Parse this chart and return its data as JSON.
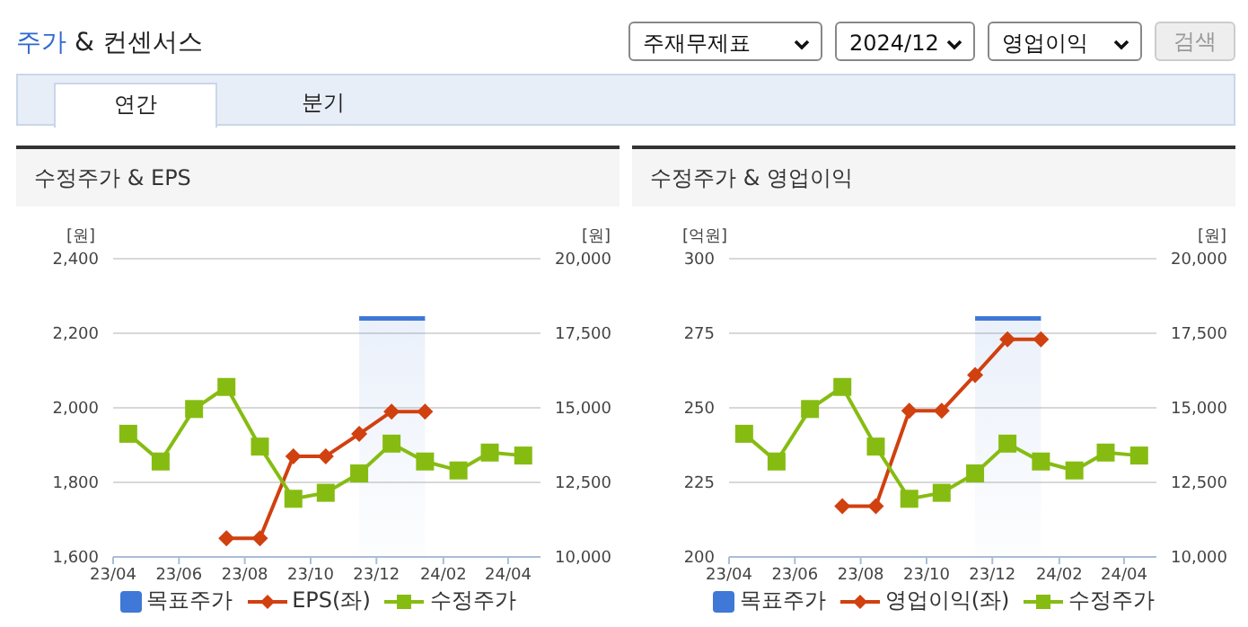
{
  "chart_data": [
    {
      "type": "line",
      "title": "수정주가 & EPS",
      "ylabel": "[원]",
      "y2label": "[원]",
      "annotations": [
        "주가 & 컨센서스",
        "주재무제표",
        "2024/12",
        "영업이익",
        "검색",
        "연간",
        "분기"
      ],
      "x": [
        "2023-04-15",
        "2023-05-15",
        "2023-06-15",
        "2023-07-15",
        "2023-08-15",
        "2023-09-15",
        "2023-10-15",
        "2023-11-15",
        "2023-12-15",
        "2024-01-15",
        "2024-02-15",
        "2024-03-15",
        "2024-04-15"
      ],
      "xlim": [
        "2023-04-01",
        "2024-05-01"
      ],
      "xticks": [
        {
          "value": "2023-04-01",
          "label": "23/04"
        },
        {
          "value": "2023-06-01",
          "label": "23/06"
        },
        {
          "value": "2023-08-01",
          "label": "23/08"
        },
        {
          "value": "2023-10-01",
          "label": "23/10"
        },
        {
          "value": "2023-12-01",
          "label": "23/12"
        },
        {
          "value": "2024-02-01",
          "label": "24/02"
        },
        {
          "value": "2024-04-01",
          "label": "24/04"
        }
      ],
      "ylim": [
        1600,
        2400
      ],
      "yticks": [
        {
          "value": 1600,
          "label": "1,600"
        },
        {
          "value": 1800,
          "label": "1,800"
        },
        {
          "value": 2000,
          "label": "2,000"
        },
        {
          "value": 2200,
          "label": "2,200"
        },
        {
          "value": 2400,
          "label": "2,400"
        }
      ],
      "y2lim": [
        10000,
        20000
      ],
      "y2ticks": [
        {
          "value": 10000,
          "label": "10,000"
        },
        {
          "value": 12500,
          "label": "12,500"
        },
        {
          "value": 15000,
          "label": "15,000"
        },
        {
          "value": 17500,
          "label": "17,500"
        },
        {
          "value": 20000,
          "label": "20,000"
        }
      ],
      "grid": "y",
      "legend": "bottom",
      "series": [
        {
          "name": "목표주가",
          "type": "area",
          "color": "#3f78d6",
          "axis": "y2",
          "marker": "none",
          "values": [
            null,
            null,
            null,
            null,
            null,
            null,
            null,
            18000,
            18000,
            18000,
            null,
            null,
            null
          ]
        },
        {
          "name": "EPS(좌)",
          "color": "#d1400f",
          "marker": "diamond",
          "values": [
            null,
            null,
            null,
            1650,
            1650,
            1870,
            1870,
            1930,
            1990,
            1990,
            null,
            null,
            null
          ]
        },
        {
          "name": "수정주가",
          "color": "#86bc12",
          "axis": "y2",
          "marker": "square",
          "values": [
            14130,
            13200,
            14960,
            15700,
            13700,
            11950,
            12150,
            12800,
            13800,
            13200,
            12900,
            13500,
            13400
          ]
        }
      ]
    },
    {
      "type": "line",
      "title": "수정주가 & 영업이익",
      "ylabel": "[억원]",
      "y2label": "[원]",
      "x": [
        "2023-04-15",
        "2023-05-15",
        "2023-06-15",
        "2023-07-15",
        "2023-08-15",
        "2023-09-15",
        "2023-10-15",
        "2023-11-15",
        "2023-12-15",
        "2024-01-15",
        "2024-02-15",
        "2024-03-15",
        "2024-04-15"
      ],
      "xlim": [
        "2023-04-01",
        "2024-05-01"
      ],
      "xticks": [
        {
          "value": "2023-04-01",
          "label": "23/04"
        },
        {
          "value": "2023-06-01",
          "label": "23/06"
        },
        {
          "value": "2023-08-01",
          "label": "23/08"
        },
        {
          "value": "2023-10-01",
          "label": "23/10"
        },
        {
          "value": "2023-12-01",
          "label": "23/12"
        },
        {
          "value": "2024-02-01",
          "label": "24/02"
        },
        {
          "value": "2024-04-01",
          "label": "24/04"
        }
      ],
      "ylim": [
        200,
        300
      ],
      "yticks": [
        200,
        225,
        250,
        275,
        300
      ],
      "y2lim": [
        10000,
        20000
      ],
      "y2ticks": [
        {
          "value": 10000,
          "label": "10,000"
        },
        {
          "value": 12500,
          "label": "12,500"
        },
        {
          "value": 15000,
          "label": "15,000"
        },
        {
          "value": 17500,
          "label": "17,500"
        },
        {
          "value": 20000,
          "label": "20,000"
        }
      ],
      "grid": "y",
      "legend": "bottom",
      "series": [
        {
          "name": "목표주가",
          "type": "area",
          "color": "#3f78d6",
          "axis": "y2",
          "marker": "none",
          "values": [
            null,
            null,
            null,
            null,
            null,
            null,
            null,
            18000,
            18000,
            18000,
            null,
            null,
            null
          ]
        },
        {
          "name": "영업이익(좌)",
          "color": "#d1400f",
          "marker": "diamond",
          "values": [
            null,
            null,
            null,
            217,
            217,
            249,
            249,
            261,
            273,
            273,
            null,
            null,
            null
          ]
        },
        {
          "name": "수정주가",
          "color": "#86bc12",
          "axis": "y2",
          "marker": "square",
          "values": [
            14130,
            13200,
            14960,
            15700,
            13700,
            11950,
            12150,
            12800,
            13800,
            13200,
            12900,
            13500,
            13400
          ]
        }
      ]
    }
  ]
}
